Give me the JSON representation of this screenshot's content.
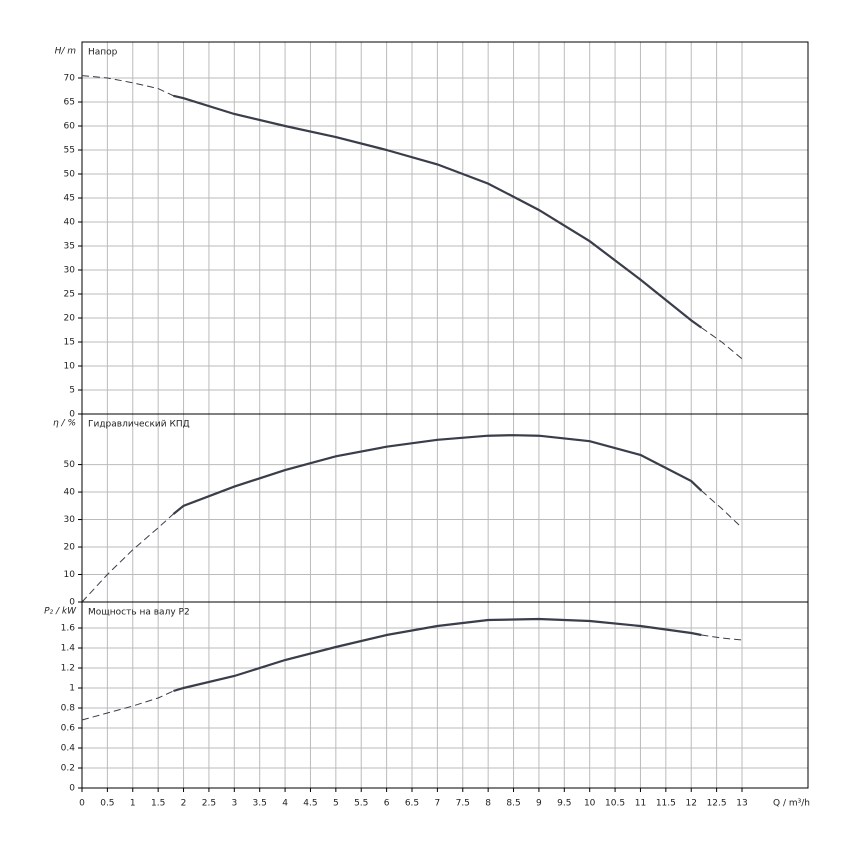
{
  "chart_data": [
    {
      "type": "line",
      "title": "Напор",
      "ylabel": "H/ m",
      "ylim": [
        0,
        77.5
      ],
      "yticks": [
        0,
        5,
        10,
        15,
        20,
        25,
        30,
        35,
        40,
        45,
        50,
        55,
        60,
        65,
        70
      ],
      "grid": true,
      "color": "#3a3d4a",
      "series": [
        {
          "x": [
            0,
            0.5,
            1,
            1.5,
            1.8
          ],
          "values": [
            70.5,
            70,
            69,
            67.8,
            66.3
          ],
          "dashed": true
        },
        {
          "x": [
            1.8,
            2,
            3,
            4,
            5,
            6,
            7,
            8,
            9,
            10,
            11,
            12,
            12.2
          ],
          "values": [
            66.3,
            65.8,
            62.5,
            60,
            57.7,
            55,
            52,
            48,
            42.5,
            36,
            28,
            19.5,
            18
          ],
          "dashed": false
        },
        {
          "x": [
            12.2,
            12.6,
            13
          ],
          "values": [
            18,
            15,
            11.5
          ],
          "dashed": true
        }
      ]
    },
    {
      "type": "line",
      "title": "Гидравлический КПД",
      "ylabel": "η / %",
      "ylim": [
        0,
        68.4
      ],
      "yticks": [
        0,
        10,
        20,
        30,
        40,
        50
      ],
      "grid": true,
      "color": "#3a3d4a",
      "series": [
        {
          "x": [
            0,
            0.5,
            1,
            1.5,
            1.8
          ],
          "values": [
            0,
            10,
            19,
            27,
            32
          ],
          "dashed": true
        },
        {
          "x": [
            1.8,
            2,
            3,
            4,
            5,
            6,
            7,
            8,
            8.5,
            9,
            10,
            11,
            12,
            12.2
          ],
          "values": [
            32,
            35,
            42,
            48,
            53,
            56.5,
            59,
            60.5,
            60.7,
            60.5,
            58.5,
            53.5,
            44,
            40.5
          ],
          "dashed": false
        },
        {
          "x": [
            12.2,
            12.6,
            13
          ],
          "values": [
            40.5,
            34,
            27
          ],
          "dashed": true
        }
      ]
    },
    {
      "type": "line",
      "title": "Мощность на валу P2",
      "ylabel": "P₂ / kW",
      "xlabel": "Q / m³/h",
      "ylim": [
        0,
        1.86
      ],
      "yticks": [
        0,
        0.2,
        0.4,
        0.6,
        0.8,
        1,
        1.2,
        1.4,
        1.6
      ],
      "grid": true,
      "color": "#3a3d4a",
      "xlim": [
        0,
        14.3
      ],
      "xticks": [
        0,
        0.5,
        1,
        1.5,
        2,
        2.5,
        3,
        3.5,
        4,
        4.5,
        5,
        5.5,
        6,
        6.5,
        7,
        7.5,
        8,
        8.5,
        9,
        9.5,
        10,
        10.5,
        11,
        11.5,
        12,
        12.5,
        13
      ],
      "series": [
        {
          "x": [
            0,
            0.5,
            1,
            1.5,
            1.8
          ],
          "values": [
            0.68,
            0.75,
            0.82,
            0.9,
            0.97
          ],
          "dashed": true
        },
        {
          "x": [
            1.8,
            2,
            3,
            4,
            5,
            6,
            7,
            8,
            9,
            10,
            11,
            12,
            12.2
          ],
          "values": [
            0.97,
            1,
            1.12,
            1.28,
            1.41,
            1.53,
            1.62,
            1.68,
            1.69,
            1.67,
            1.62,
            1.55,
            1.53
          ],
          "dashed": false
        },
        {
          "x": [
            12.2,
            12.6,
            13
          ],
          "values": [
            1.53,
            1.5,
            1.48
          ],
          "dashed": true
        }
      ]
    }
  ]
}
